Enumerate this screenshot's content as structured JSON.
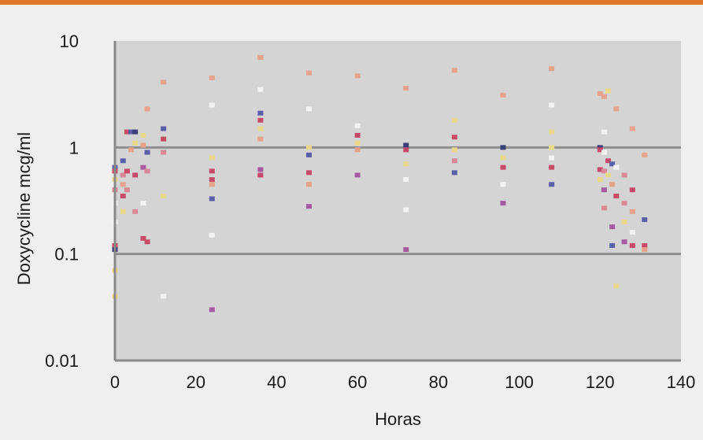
{
  "colors": {
    "top_bar": "#e0782a",
    "page_background": "#efefef",
    "plot_background": "#d4d4d4",
    "reference_line": "#8f8f8f",
    "axis_line": "#8a8a8a",
    "point_palette": [
      "#d9889a",
      "#5a5fa8",
      "#e8d98a",
      "#f3f3f3",
      "#c84a6a",
      "#3a3f7a",
      "#e6a28a",
      "#a85aa0"
    ]
  },
  "chart_data": {
    "type": "scatter",
    "xlabel": "Horas",
    "ylabel": "Doxycycline mcg/ml",
    "xlim": [
      0,
      140
    ],
    "ylim": [
      0.01,
      10
    ],
    "y_scale": "log",
    "x_ticks": [
      "0",
      "20",
      "40",
      "60",
      "80",
      "100",
      "120",
      "140"
    ],
    "x_tick_values": [
      0,
      20,
      40,
      60,
      80,
      100,
      120,
      140
    ],
    "y_ticks": [
      "10",
      "1",
      "0.1",
      "0.01"
    ],
    "y_tick_values": [
      10,
      1,
      0.1,
      0.01
    ],
    "reference_lines_y": [
      1,
      0.1
    ],
    "grid": false,
    "points": [
      {
        "x": 0,
        "y": 0.65,
        "c": 1
      },
      {
        "x": 0,
        "y": 0.6,
        "c": 4
      },
      {
        "x": 0,
        "y": 0.5,
        "c": 2
      },
      {
        "x": 0,
        "y": 0.4,
        "c": 0
      },
      {
        "x": 0,
        "y": 0.3,
        "c": 3
      },
      {
        "x": 0,
        "y": 0.2,
        "c": 3
      },
      {
        "x": 0,
        "y": 0.12,
        "c": 4
      },
      {
        "x": 0,
        "y": 0.11,
        "c": 5
      },
      {
        "x": 0,
        "y": 0.07,
        "c": 2
      },
      {
        "x": 0,
        "y": 0.04,
        "c": 2
      },
      {
        "x": 2,
        "y": 0.75,
        "c": 1
      },
      {
        "x": 2,
        "y": 0.55,
        "c": 0
      },
      {
        "x": 2,
        "y": 0.45,
        "c": 6
      },
      {
        "x": 2,
        "y": 0.35,
        "c": 4
      },
      {
        "x": 2,
        "y": 0.25,
        "c": 2
      },
      {
        "x": 3,
        "y": 1.4,
        "c": 4
      },
      {
        "x": 3,
        "y": 0.6,
        "c": 4
      },
      {
        "x": 3,
        "y": 0.4,
        "c": 0
      },
      {
        "x": 4,
        "y": 1.4,
        "c": 1
      },
      {
        "x": 4,
        "y": 0.95,
        "c": 6
      },
      {
        "x": 5,
        "y": 1.4,
        "c": 5
      },
      {
        "x": 5,
        "y": 1.1,
        "c": 2
      },
      {
        "x": 5,
        "y": 0.55,
        "c": 4
      },
      {
        "x": 5,
        "y": 0.25,
        "c": 0
      },
      {
        "x": 7,
        "y": 1.3,
        "c": 2
      },
      {
        "x": 7,
        "y": 1.05,
        "c": 6
      },
      {
        "x": 7,
        "y": 0.65,
        "c": 7
      },
      {
        "x": 7,
        "y": 0.3,
        "c": 3
      },
      {
        "x": 7,
        "y": 0.14,
        "c": 4
      },
      {
        "x": 8,
        "y": 2.3,
        "c": 6
      },
      {
        "x": 8,
        "y": 0.9,
        "c": 1
      },
      {
        "x": 8,
        "y": 0.6,
        "c": 0
      },
      {
        "x": 8,
        "y": 0.13,
        "c": 4
      },
      {
        "x": 12,
        "y": 4.1,
        "c": 6
      },
      {
        "x": 12,
        "y": 1.5,
        "c": 1
      },
      {
        "x": 12,
        "y": 1.2,
        "c": 4
      },
      {
        "x": 12,
        "y": 0.9,
        "c": 0
      },
      {
        "x": 12,
        "y": 0.35,
        "c": 2
      },
      {
        "x": 12,
        "y": 0.04,
        "c": 3
      },
      {
        "x": 24,
        "y": 4.5,
        "c": 6
      },
      {
        "x": 24,
        "y": 2.5,
        "c": 3
      },
      {
        "x": 24,
        "y": 0.8,
        "c": 2
      },
      {
        "x": 24,
        "y": 0.6,
        "c": 4
      },
      {
        "x": 24,
        "y": 0.5,
        "c": 4
      },
      {
        "x": 24,
        "y": 0.45,
        "c": 6
      },
      {
        "x": 24,
        "y": 0.33,
        "c": 1
      },
      {
        "x": 24,
        "y": 0.15,
        "c": 3
      },
      {
        "x": 24,
        "y": 0.03,
        "c": 7
      },
      {
        "x": 36,
        "y": 7.0,
        "c": 6
      },
      {
        "x": 36,
        "y": 3.5,
        "c": 3
      },
      {
        "x": 36,
        "y": 2.1,
        "c": 1
      },
      {
        "x": 36,
        "y": 1.8,
        "c": 4
      },
      {
        "x": 36,
        "y": 1.5,
        "c": 2
      },
      {
        "x": 36,
        "y": 1.2,
        "c": 6
      },
      {
        "x": 36,
        "y": 0.62,
        "c": 7
      },
      {
        "x": 36,
        "y": 0.55,
        "c": 4
      },
      {
        "x": 48,
        "y": 5.0,
        "c": 6
      },
      {
        "x": 48,
        "y": 2.3,
        "c": 3
      },
      {
        "x": 48,
        "y": 1.0,
        "c": 2
      },
      {
        "x": 48,
        "y": 0.85,
        "c": 1
      },
      {
        "x": 48,
        "y": 0.58,
        "c": 4
      },
      {
        "x": 48,
        "y": 0.45,
        "c": 6
      },
      {
        "x": 48,
        "y": 0.28,
        "c": 7
      },
      {
        "x": 60,
        "y": 4.7,
        "c": 6
      },
      {
        "x": 60,
        "y": 1.6,
        "c": 3
      },
      {
        "x": 60,
        "y": 1.3,
        "c": 4
      },
      {
        "x": 60,
        "y": 1.1,
        "c": 2
      },
      {
        "x": 60,
        "y": 0.95,
        "c": 6
      },
      {
        "x": 60,
        "y": 0.55,
        "c": 7
      },
      {
        "x": 72,
        "y": 3.6,
        "c": 6
      },
      {
        "x": 72,
        "y": 1.05,
        "c": 5
      },
      {
        "x": 72,
        "y": 0.95,
        "c": 4
      },
      {
        "x": 72,
        "y": 0.7,
        "c": 2
      },
      {
        "x": 72,
        "y": 0.5,
        "c": 3
      },
      {
        "x": 72,
        "y": 0.26,
        "c": 3
      },
      {
        "x": 72,
        "y": 0.11,
        "c": 7
      },
      {
        "x": 84,
        "y": 5.3,
        "c": 6
      },
      {
        "x": 84,
        "y": 1.8,
        "c": 2
      },
      {
        "x": 84,
        "y": 1.25,
        "c": 4
      },
      {
        "x": 84,
        "y": 0.95,
        "c": 2
      },
      {
        "x": 84,
        "y": 0.75,
        "c": 0
      },
      {
        "x": 84,
        "y": 0.58,
        "c": 1
      },
      {
        "x": 96,
        "y": 3.1,
        "c": 6
      },
      {
        "x": 96,
        "y": 1.0,
        "c": 5
      },
      {
        "x": 96,
        "y": 0.8,
        "c": 2
      },
      {
        "x": 96,
        "y": 0.65,
        "c": 4
      },
      {
        "x": 96,
        "y": 0.45,
        "c": 3
      },
      {
        "x": 96,
        "y": 0.3,
        "c": 7
      },
      {
        "x": 108,
        "y": 5.5,
        "c": 6
      },
      {
        "x": 108,
        "y": 2.5,
        "c": 3
      },
      {
        "x": 108,
        "y": 1.4,
        "c": 2
      },
      {
        "x": 108,
        "y": 1.0,
        "c": 2
      },
      {
        "x": 108,
        "y": 0.8,
        "c": 3
      },
      {
        "x": 108,
        "y": 0.65,
        "c": 4
      },
      {
        "x": 108,
        "y": 0.45,
        "c": 1
      },
      {
        "x": 120,
        "y": 3.2,
        "c": 6
      },
      {
        "x": 120,
        "y": 1.0,
        "c": 5
      },
      {
        "x": 120,
        "y": 0.95,
        "c": 4
      },
      {
        "x": 120,
        "y": 0.62,
        "c": 4
      },
      {
        "x": 120,
        "y": 0.5,
        "c": 2
      },
      {
        "x": 121,
        "y": 3.0,
        "c": 6
      },
      {
        "x": 121,
        "y": 1.4,
        "c": 3
      },
      {
        "x": 121,
        "y": 0.9,
        "c": 3
      },
      {
        "x": 121,
        "y": 0.6,
        "c": 0
      },
      {
        "x": 121,
        "y": 0.4,
        "c": 7
      },
      {
        "x": 121,
        "y": 0.27,
        "c": 0
      },
      {
        "x": 122,
        "y": 3.4,
        "c": 2
      },
      {
        "x": 122,
        "y": 0.75,
        "c": 4
      },
      {
        "x": 122,
        "y": 0.55,
        "c": 2
      },
      {
        "x": 123,
        "y": 0.7,
        "c": 1
      },
      {
        "x": 123,
        "y": 0.45,
        "c": 6
      },
      {
        "x": 123,
        "y": 0.18,
        "c": 7
      },
      {
        "x": 123,
        "y": 0.12,
        "c": 1
      },
      {
        "x": 124,
        "y": 2.3,
        "c": 6
      },
      {
        "x": 124,
        "y": 0.65,
        "c": 3
      },
      {
        "x": 124,
        "y": 0.35,
        "c": 4
      },
      {
        "x": 124,
        "y": 0.05,
        "c": 2
      },
      {
        "x": 126,
        "y": 0.55,
        "c": 0
      },
      {
        "x": 126,
        "y": 0.3,
        "c": 0
      },
      {
        "x": 126,
        "y": 0.2,
        "c": 2
      },
      {
        "x": 126,
        "y": 0.13,
        "c": 7
      },
      {
        "x": 128,
        "y": 1.5,
        "c": 6
      },
      {
        "x": 128,
        "y": 0.4,
        "c": 4
      },
      {
        "x": 128,
        "y": 0.25,
        "c": 6
      },
      {
        "x": 128,
        "y": 0.16,
        "c": 3
      },
      {
        "x": 128,
        "y": 0.12,
        "c": 4
      },
      {
        "x": 131,
        "y": 0.85,
        "c": 6
      },
      {
        "x": 131,
        "y": 0.21,
        "c": 1
      },
      {
        "x": 131,
        "y": 0.12,
        "c": 4
      },
      {
        "x": 131,
        "y": 0.11,
        "c": 6
      }
    ]
  }
}
